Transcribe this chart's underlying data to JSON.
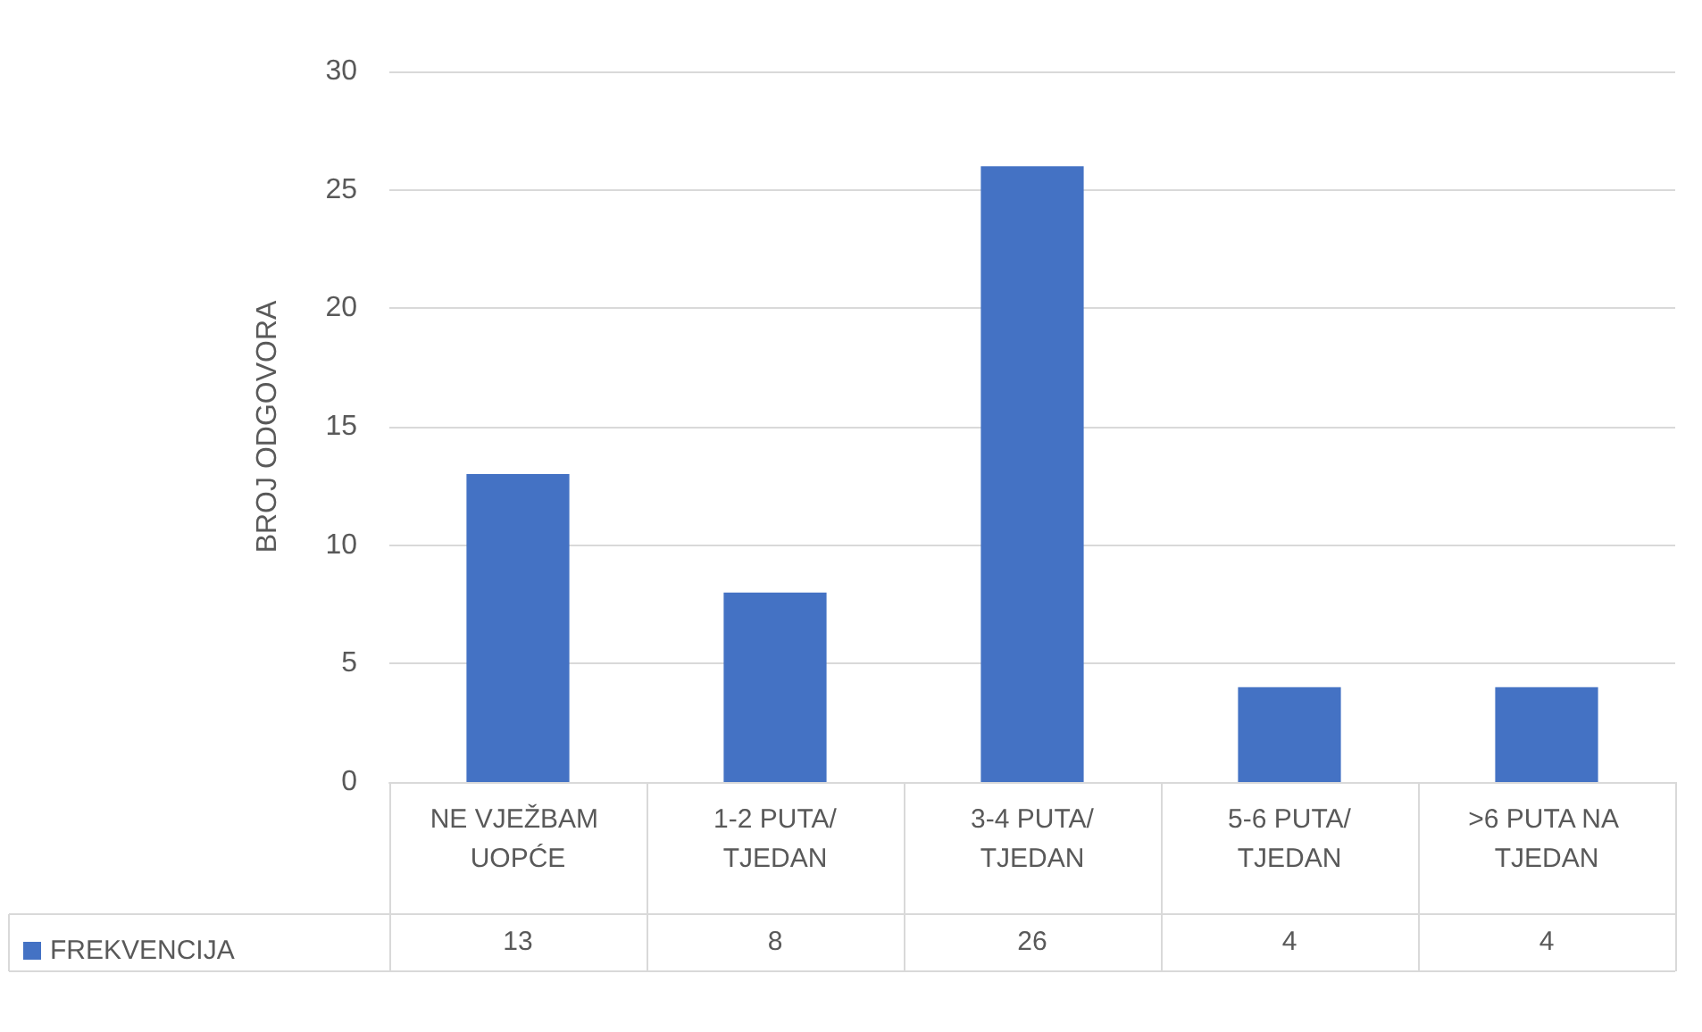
{
  "chart_data": {
    "type": "bar",
    "ylabel": "BROJ ODGOVORA",
    "categories": [
      "NE VJEŽBAM UOPĆE",
      "1-2 PUTA/TJEDAN",
      "3-4 PUTA/TJEDAN",
      "5-6 PUTA/TJEDAN",
      ">6 PUTA NA TJEDAN"
    ],
    "series": [
      {
        "name": "FREKVENCIJA",
        "color": "#4472c4",
        "values": [
          13,
          8,
          26,
          4,
          4
        ]
      }
    ],
    "ylim": [
      0,
      30
    ],
    "yticks": [
      0,
      5,
      10,
      15,
      20,
      25,
      30
    ],
    "grid": "y",
    "legend": "bottom left",
    "data_labels": true
  }
}
